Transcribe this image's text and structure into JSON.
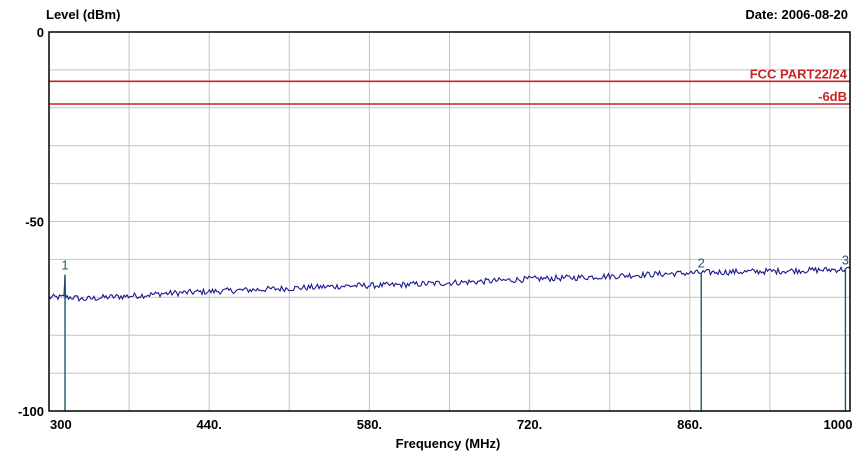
{
  "chart_data": {
    "type": "line",
    "title": "",
    "xlabel": "Frequency (MHz)",
    "ylabel": "Level (dBm)",
    "date_label": "Date: 2006-08-20",
    "xlim": [
      300,
      1000
    ],
    "ylim": [
      -100,
      0
    ],
    "x_ticks": [
      300,
      440,
      580,
      720,
      860,
      1000
    ],
    "x_tick_labels": [
      "300",
      "440.",
      "580.",
      "720.",
      "860.",
      "1000"
    ],
    "y_ticks": [
      0,
      -50,
      -100
    ],
    "y_tick_labels": [
      "0",
      "-50",
      "-100"
    ],
    "grid": true,
    "grid_x_count": 10,
    "grid_y_count": 10,
    "limit_lines": [
      {
        "name": "FCC PART22/24",
        "value": -13,
        "color": "#cc2222"
      },
      {
        "name": "-6dB",
        "value": -19,
        "color": "#cc2222"
      }
    ],
    "series": [
      {
        "color": "#1a1a8c",
        "x": [
          300,
          314,
          320,
          330,
          350,
          380,
          400,
          440,
          480,
          520,
          560,
          600,
          640,
          680,
          720,
          760,
          800,
          840,
          880,
          920,
          960,
          1000
        ],
        "y": [
          -70,
          -70,
          -70,
          -70.5,
          -70,
          -69.5,
          -69,
          -68.5,
          -68,
          -67.5,
          -67,
          -66.8,
          -66.3,
          -65.8,
          -65.2,
          -64.8,
          -64.3,
          -63.8,
          -63.4,
          -63.2,
          -62.9,
          -62.6
        ]
      }
    ],
    "markers": [
      {
        "label": "1",
        "x": 314,
        "y": -64
      },
      {
        "label": "2",
        "x": 870,
        "y": -63.5
      },
      {
        "label": "3",
        "x": 996,
        "y": -62.7
      }
    ],
    "marker_color": "#1d5a6e"
  }
}
